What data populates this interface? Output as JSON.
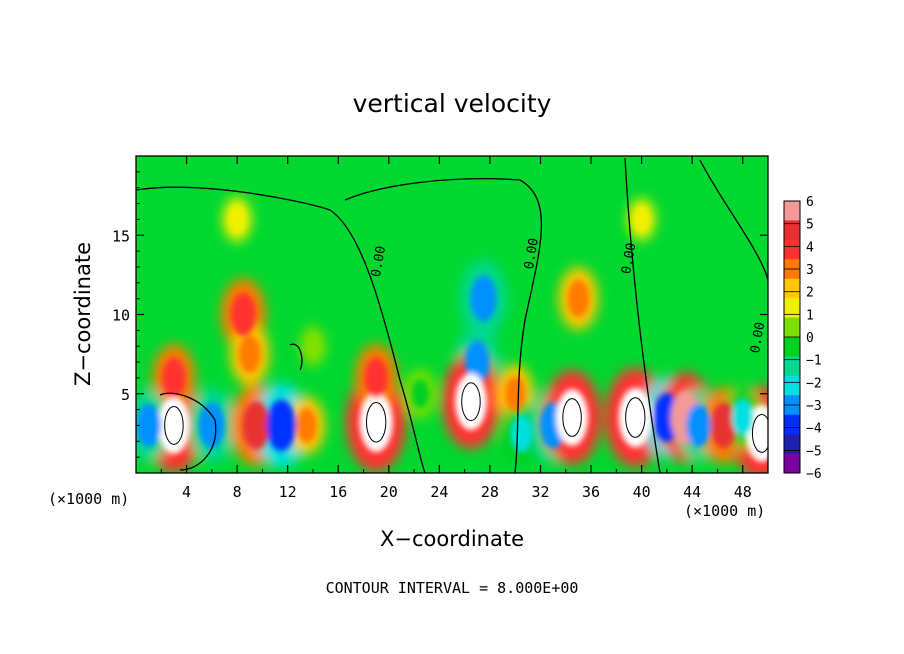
{
  "chart_data": {
    "type": "heatmap",
    "title": "vertical velocity",
    "xlabel": "X−coordinate",
    "ylabel": "Z−coordinate",
    "x_unit_label_left": "(×1000 m)",
    "x_unit_label_right": "(×1000 m)",
    "x_ticks": [
      4,
      8,
      12,
      16,
      20,
      24,
      28,
      32,
      36,
      40,
      44,
      48
    ],
    "y_ticks": [
      5,
      10,
      15
    ],
    "xlim": [
      0,
      50
    ],
    "ylim": [
      0,
      20
    ],
    "contour_interval_text": "CONTOUR INTERVAL = 8.000E+00",
    "contour_labels": [
      {
        "text": "0.00",
        "x": 19.5,
        "y": 13.3
      },
      {
        "text": "0.00",
        "x": 31.6,
        "y": 13.8
      },
      {
        "text": "0.00",
        "x": 39.3,
        "y": 13.5
      },
      {
        "text": "0.00",
        "x": 49.5,
        "y": 8.5
      }
    ],
    "colorbar": {
      "levels": [
        "6",
        "5",
        "4",
        "3",
        "2",
        "1",
        "0",
        "−1",
        "−2",
        "−3",
        "−4",
        "−5",
        "−6"
      ],
      "colors": [
        "#f29a9a",
        "#e83030",
        "#ff3030",
        "#ff7a00",
        "#ffc800",
        "#f0f000",
        "#7ee000",
        "#00d020",
        "#00d890",
        "#00e0e0",
        "#0090ff",
        "#0030ff",
        "#2020b0",
        "#7a00a0"
      ]
    },
    "cells": [
      {
        "x": 3,
        "y": 3,
        "v": 6.5
      },
      {
        "x": 3,
        "y": 6,
        "v": 3.5
      },
      {
        "x": 1,
        "y": 3,
        "v": -4
      },
      {
        "x": 6,
        "y": 3,
        "v": -4.5
      },
      {
        "x": 8.5,
        "y": 10,
        "v": 4
      },
      {
        "x": 9,
        "y": 7.5,
        "v": 3
      },
      {
        "x": 9.5,
        "y": 3,
        "v": 5
      },
      {
        "x": 11.5,
        "y": 3,
        "v": -5.5
      },
      {
        "x": 13.5,
        "y": 3,
        "v": 2.5
      },
      {
        "x": 19,
        "y": 3.2,
        "v": 7
      },
      {
        "x": 19,
        "y": 6,
        "v": 3.5
      },
      {
        "x": 22.5,
        "y": 5,
        "v": -1.5
      },
      {
        "x": 27.5,
        "y": 11,
        "v": -4.5
      },
      {
        "x": 27,
        "y": 7,
        "v": -4
      },
      {
        "x": 26.5,
        "y": 4.5,
        "v": 6.5
      },
      {
        "x": 30,
        "y": 5,
        "v": 2.5
      },
      {
        "x": 30.5,
        "y": 2.5,
        "v": -3
      },
      {
        "x": 33,
        "y": 3,
        "v": -4.5
      },
      {
        "x": 35,
        "y": 11,
        "v": 3
      },
      {
        "x": 34.5,
        "y": 3.5,
        "v": 6.5
      },
      {
        "x": 39.5,
        "y": 3.5,
        "v": 7
      },
      {
        "x": 42,
        "y": 3.5,
        "v": -5
      },
      {
        "x": 43.5,
        "y": 3.5,
        "v": 6
      },
      {
        "x": 44.5,
        "y": 3,
        "v": -4
      },
      {
        "x": 46.5,
        "y": 3,
        "v": 4.5
      },
      {
        "x": 49.5,
        "y": 2.5,
        "v": 6.5
      },
      {
        "x": 48,
        "y": 3.5,
        "v": -3
      },
      {
        "x": 14,
        "y": 8,
        "v": -0.5
      },
      {
        "x": 8,
        "y": 16,
        "v": 1
      },
      {
        "x": 40,
        "y": 16,
        "v": 0.7
      }
    ]
  }
}
